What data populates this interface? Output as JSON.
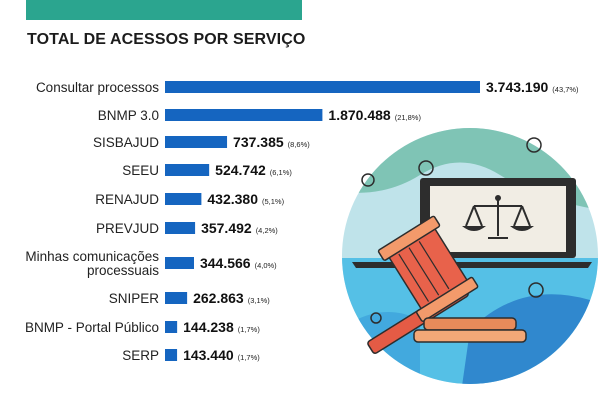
{
  "header": {
    "title": "TOTAL DE ACESSOS POR SERVIÇO",
    "band_color": "#2ba58f"
  },
  "colors": {
    "bar": "#1565c0"
  },
  "chart_data": {
    "type": "bar",
    "orientation": "horizontal",
    "title": "TOTAL DE ACESSOS POR SERVIÇO",
    "xlabel": "",
    "ylabel": "",
    "grid": false,
    "categories": [
      [
        "Consultar processos"
      ],
      [
        "BNMP 3.0"
      ],
      [
        "SISBAJUD"
      ],
      [
        "SEEU"
      ],
      [
        "RENAJUD"
      ],
      [
        "PREVJUD"
      ],
      [
        "Minhas comunicações",
        "processuais"
      ],
      [
        "SNIPER"
      ],
      [
        "BNMP - Portal Público"
      ],
      [
        "SERP"
      ]
    ],
    "values": [
      3743190,
      1870488,
      737385,
      524742,
      432380,
      357492,
      344566,
      262863,
      144238,
      143440
    ],
    "value_labels": [
      "3.743.190",
      "1.870.488",
      "737.385",
      "524.742",
      "432.380",
      "357.492",
      "344.566",
      "262.863",
      "144.238",
      "143.440"
    ],
    "percent_labels": [
      "(43,7%)",
      "(21,8%)",
      "(8,6%)",
      "(6,1%)",
      "(5,1%)",
      "(4,2%)",
      "(4,0%)",
      "(3,1%)",
      "(1,7%)",
      "(1,7%)"
    ]
  }
}
